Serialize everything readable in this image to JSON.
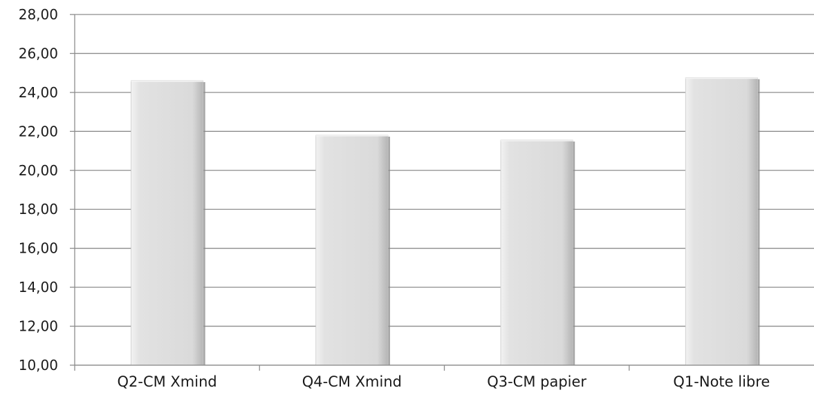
{
  "chart_data": {
    "type": "bar",
    "categories": [
      "Q2-CM Xmind",
      "Q4-CM Xmind",
      "Q3-CM papier",
      "Q1-Note libre"
    ],
    "values": [
      24.6,
      21.8,
      21.55,
      24.75
    ],
    "ylim": [
      10,
      28
    ],
    "y_ticks": [
      "10,00",
      "12,00",
      "14,00",
      "16,00",
      "18,00",
      "20,00",
      "22,00",
      "24,00",
      "26,00",
      "28,00"
    ],
    "grid": true,
    "legend": "none",
    "colors": {
      "bar_fill": "#dcdcdc",
      "bar_highlight": "#f4f4f4",
      "bar_shadow": "#8a8a8a",
      "gridline": "#8c8c8c",
      "axis": "#8c8c8c"
    }
  }
}
